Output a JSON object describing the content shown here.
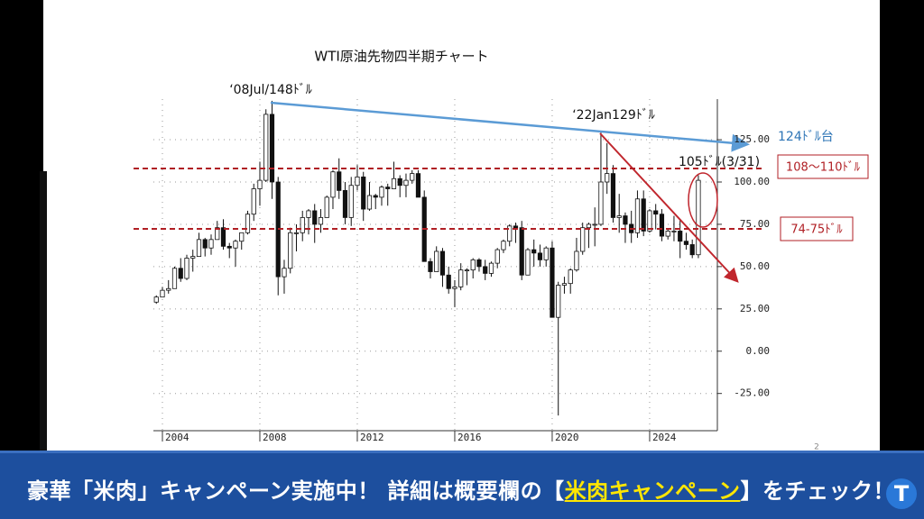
{
  "chart_data": {
    "type": "candlestick",
    "title": "WTI原油先物四半期チャート",
    "x": [
      2003.75,
      2004,
      2004.25,
      2004.5,
      2004.75,
      2005,
      2005.25,
      2005.5,
      2005.75,
      2006,
      2006.25,
      2006.5,
      2006.75,
      2007,
      2007.25,
      2007.5,
      2007.75,
      2008,
      2008.25,
      2008.5,
      2008.75,
      2009,
      2009.25,
      2009.5,
      2009.75,
      2010,
      2010.25,
      2010.5,
      2010.75,
      2011,
      2011.25,
      2011.5,
      2011.75,
      2012,
      2012.25,
      2012.5,
      2012.75,
      2013,
      2013.25,
      2013.5,
      2013.75,
      2014,
      2014.25,
      2014.5,
      2014.75,
      2015,
      2015.25,
      2015.5,
      2015.75,
      2016,
      2016.25,
      2016.5,
      2016.75,
      2017,
      2017.25,
      2017.5,
      2017.75,
      2018,
      2018.25,
      2018.5,
      2018.75,
      2019,
      2019.25,
      2019.5,
      2019.75,
      2020,
      2020.25,
      2020.5,
      2020.75,
      2021,
      2021.25,
      2021.5,
      2021.75,
      2022,
      2022.25,
      2022.5,
      2022.75,
      2023,
      2023.25,
      2023.5,
      2023.75,
      2024,
      2024.25,
      2024.5,
      2024.75,
      2025,
      2025.25,
      2025.5,
      2025.75,
      2026
    ],
    "open": [
      29,
      32,
      36,
      37,
      49,
      43,
      55,
      56,
      66,
      61,
      66,
      73,
      62,
      61,
      65,
      70,
      81,
      96,
      101,
      140,
      100,
      44,
      49,
      70,
      70,
      79,
      83,
      75,
      79,
      91,
      106,
      95,
      79,
      98,
      103,
      84,
      92,
      91,
      97,
      96,
      102,
      98,
      101,
      105,
      91,
      53,
      47,
      59,
      45,
      37,
      38,
      48,
      48,
      54,
      50,
      46,
      52,
      60,
      65,
      74,
      73,
      45,
      60,
      58,
      54,
      61,
      20,
      39,
      40,
      48,
      59,
      73,
      75,
      75,
      100,
      105,
      79,
      80,
      75,
      70,
      90,
      71,
      83,
      81,
      68,
      71,
      71,
      65,
      63,
      57
    ],
    "high": [
      33,
      38,
      42,
      50,
      55,
      57,
      60,
      70,
      67,
      69,
      77,
      78,
      64,
      66,
      70,
      83,
      99,
      112,
      143,
      148,
      103,
      54,
      73,
      75,
      83,
      84,
      87,
      84,
      92,
      107,
      114,
      100,
      103,
      110,
      106,
      100,
      93,
      98,
      99,
      112,
      104,
      105,
      107,
      107,
      95,
      55,
      62,
      61,
      50,
      42,
      52,
      49,
      55,
      55,
      54,
      53,
      61,
      66,
      75,
      76,
      77,
      61,
      66,
      63,
      62,
      65,
      41,
      44,
      49,
      67,
      76,
      76,
      85,
      130,
      123,
      110,
      93,
      82,
      83,
      95,
      95,
      84,
      87,
      84,
      72,
      80,
      78,
      70,
      66,
      104
    ],
    "low": [
      28,
      32,
      34,
      37,
      41,
      42,
      47,
      56,
      56,
      57,
      66,
      60,
      55,
      50,
      60,
      69,
      77,
      86,
      100,
      90,
      33,
      34,
      46,
      59,
      65,
      69,
      64,
      70,
      79,
      84,
      90,
      75,
      74,
      95,
      77,
      83,
      84,
      86,
      86,
      96,
      91,
      91,
      99,
      91,
      53,
      43,
      47,
      38,
      34,
      26,
      36,
      39,
      43,
      47,
      42,
      44,
      49,
      58,
      62,
      64,
      42,
      45,
      50,
      50,
      50,
      20,
      -38,
      34,
      34,
      47,
      57,
      61,
      62,
      74,
      93,
      76,
      70,
      64,
      64,
      67,
      68,
      70,
      72,
      65,
      66,
      65,
      55,
      60,
      55,
      55
    ],
    "close": [
      32,
      36,
      37,
      49,
      43,
      55,
      56,
      66,
      61,
      66,
      73,
      62,
      61,
      65,
      70,
      81,
      96,
      101,
      140,
      100,
      44,
      49,
      70,
      70,
      79,
      83,
      75,
      79,
      91,
      106,
      95,
      79,
      98,
      103,
      84,
      92,
      91,
      97,
      96,
      102,
      98,
      101,
      105,
      91,
      53,
      47,
      59,
      45,
      37,
      38,
      48,
      48,
      54,
      50,
      46,
      52,
      60,
      65,
      74,
      73,
      45,
      60,
      58,
      54,
      61,
      20,
      39,
      40,
      48,
      59,
      73,
      75,
      75,
      100,
      105,
      79,
      80,
      75,
      70,
      90,
      71,
      83,
      81,
      68,
      71,
      71,
      65,
      63,
      57,
      101
    ],
    "up_color": "#ffffff",
    "down_color": "#111111",
    "xlim": [
      2003.63,
      2026.78
    ],
    "xticks": [
      2004,
      2008,
      2012,
      2016,
      2020,
      2024
    ],
    "ylim": [
      -47,
      149
    ],
    "yticks": [
      {
        "value": -25,
        "label": "-25.00"
      },
      {
        "value": 0,
        "label": "0.00"
      },
      {
        "value": 25,
        "label": "25.00"
      },
      {
        "value": 50,
        "label": "50.00"
      },
      {
        "value": 75,
        "label": "75.00"
      },
      {
        "value": 100,
        "label": "100.00"
      },
      {
        "value": 125,
        "label": "125.00"
      }
    ],
    "grid": true,
    "annotations": [
      "‘08Jul/148ﾄﾞﾙ",
      "‘22Jan129ﾄﾞﾙ",
      "124ﾄﾞﾙ台",
      "105ﾄﾞﾙ(3/31)",
      "108〜110ﾄﾞﾙ",
      "74-75ﾄﾞﾙ"
    ],
    "page_number": "2"
  },
  "banner": {
    "before": "豪華「米肉」キャンペーン実施中！ 詳細は概要欄の【",
    "highlight": "米肉キャンペーン",
    "after": "】をチェック！"
  }
}
